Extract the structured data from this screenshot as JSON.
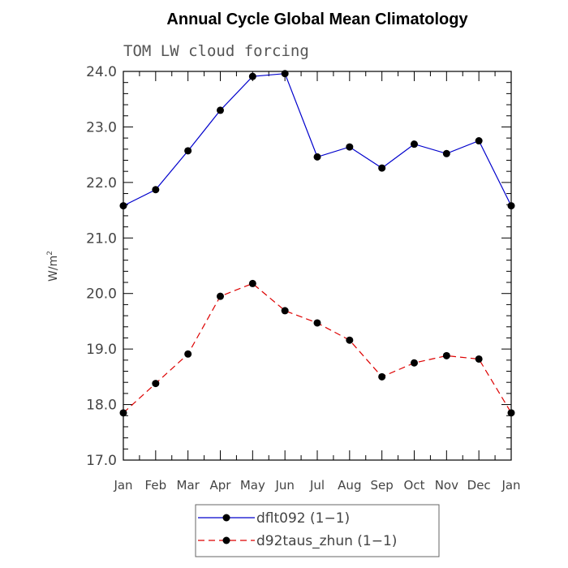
{
  "chart_data": {
    "type": "line",
    "title": "Annual Cycle Global Mean Climatology",
    "subtitle": "TOM LW cloud forcing",
    "ylabel_base": "W/m",
    "ylabel_sup": "2",
    "xlabel": "",
    "ylim": [
      17.0,
      24.0
    ],
    "yticks": [
      "17.0",
      "18.0",
      "19.0",
      "20.0",
      "21.0",
      "22.0",
      "23.0",
      "24.0"
    ],
    "categories": [
      "Jan",
      "Feb",
      "Mar",
      "Apr",
      "May",
      "Jun",
      "Jul",
      "Aug",
      "Sep",
      "Oct",
      "Nov",
      "Dec",
      "Jan"
    ],
    "grid": false,
    "legend_position": "bottom-center",
    "series": [
      {
        "name": "dflt092 (1−1)",
        "color": "#0000cc",
        "dash": "solid",
        "values": [
          21.58,
          21.87,
          22.57,
          23.3,
          23.91,
          23.96,
          22.46,
          22.64,
          22.26,
          22.69,
          22.52,
          22.75,
          21.58
        ]
      },
      {
        "name": "d92taus_zhun (1−1)",
        "color": "#dd0000",
        "dash": "dashed",
        "values": [
          17.85,
          18.38,
          18.91,
          19.95,
          20.18,
          19.69,
          19.47,
          19.16,
          18.5,
          18.75,
          18.88,
          18.82,
          17.85
        ]
      }
    ]
  }
}
